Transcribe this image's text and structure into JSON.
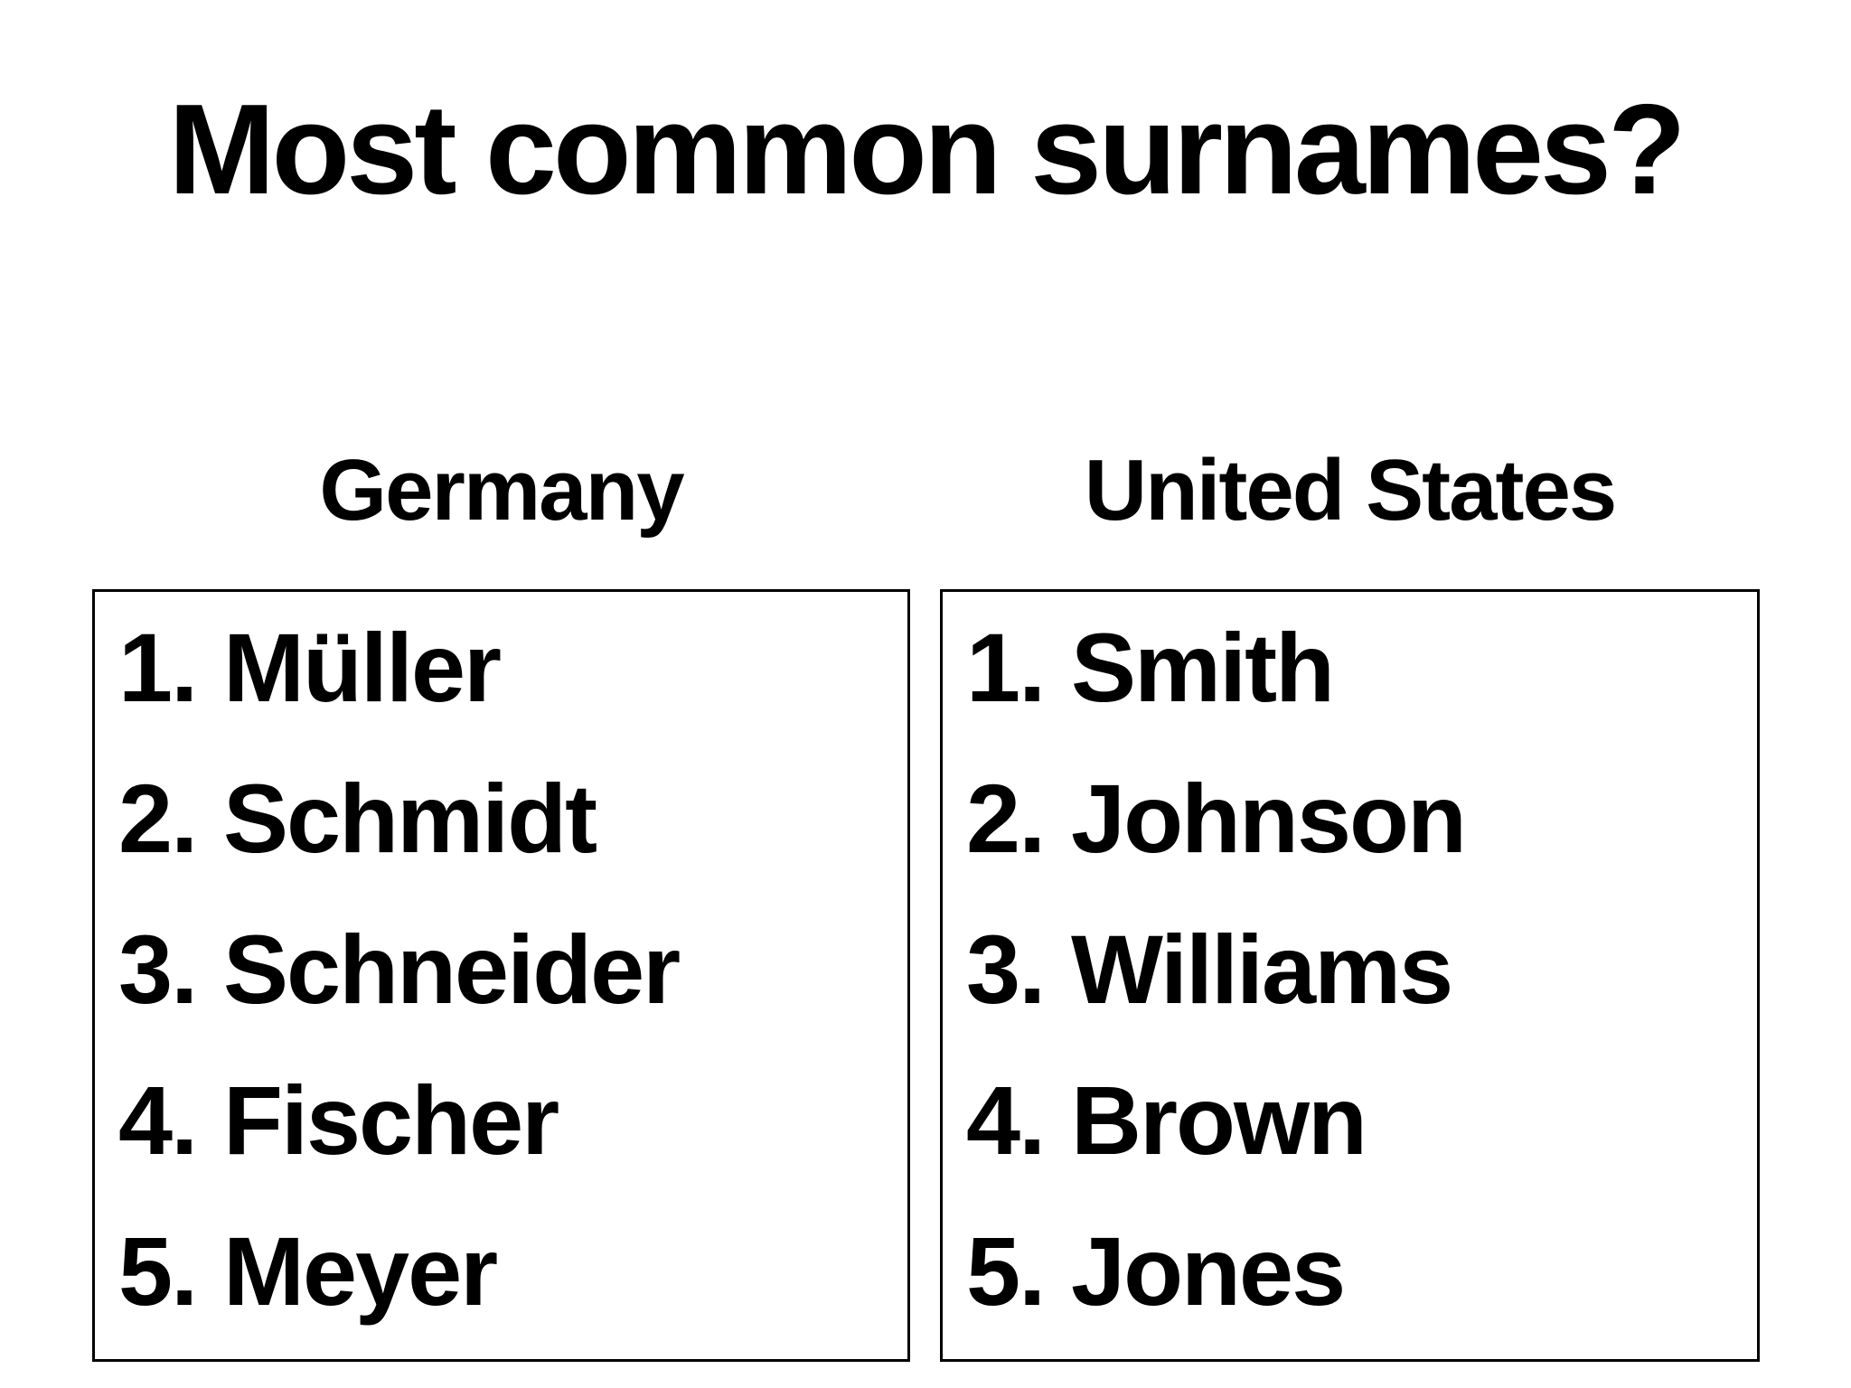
{
  "slide": {
    "title": "Most common surnames?",
    "columns": [
      {
        "header": "Germany",
        "items": [
          {
            "number": "1.",
            "name": "Müller"
          },
          {
            "number": "2.",
            "name": "Schmidt"
          },
          {
            "number": "3.",
            "name": "Schneider"
          },
          {
            "number": "4.",
            "name": "Fischer"
          },
          {
            "number": "5.",
            "name": "Meyer"
          }
        ]
      },
      {
        "header": "United States",
        "items": [
          {
            "number": "1.",
            "name": "Smith"
          },
          {
            "number": "2.",
            "name": "Johnson"
          },
          {
            "number": "3.",
            "name": "Williams"
          },
          {
            "number": "4.",
            "name": "Brown"
          },
          {
            "number": "5.",
            "name": "Jones"
          }
        ]
      }
    ]
  },
  "colors": {
    "background": "#ffffff",
    "text": "#000000",
    "box_border": "#000000"
  }
}
